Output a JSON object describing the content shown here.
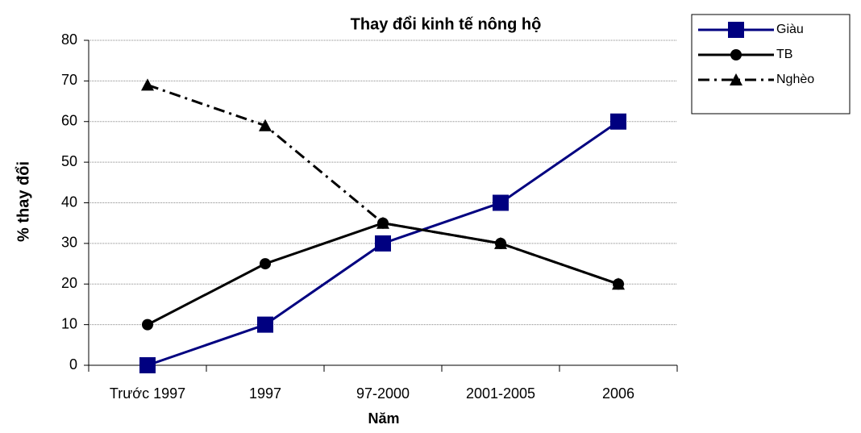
{
  "chart_data": {
    "type": "line",
    "title": "Thay đổi kinh tế nông hộ",
    "x_label": "Năm",
    "y_label": "% thay đổi",
    "categories": [
      "Trước 1997",
      "1997",
      "97-2000",
      "2001-2005",
      "2006"
    ],
    "series": [
      {
        "name": "Giàu",
        "color": "#000080",
        "marker": "square",
        "dash": "solid",
        "values": [
          0,
          10,
          30,
          40,
          60
        ]
      },
      {
        "name": "TB",
        "color": "#000000",
        "marker": "circle",
        "dash": "solid",
        "values": [
          10,
          25,
          35,
          30,
          20
        ]
      },
      {
        "name": "Nghèo",
        "color": "#000000",
        "marker": "triangle",
        "dash": "dashdot",
        "values": [
          69,
          59,
          35,
          30,
          20
        ]
      }
    ],
    "ylim": [
      0,
      80
    ],
    "yticks": [
      0,
      10,
      20,
      30,
      40,
      50,
      60,
      70,
      80
    ],
    "grid": true,
    "legend": "top-right"
  }
}
